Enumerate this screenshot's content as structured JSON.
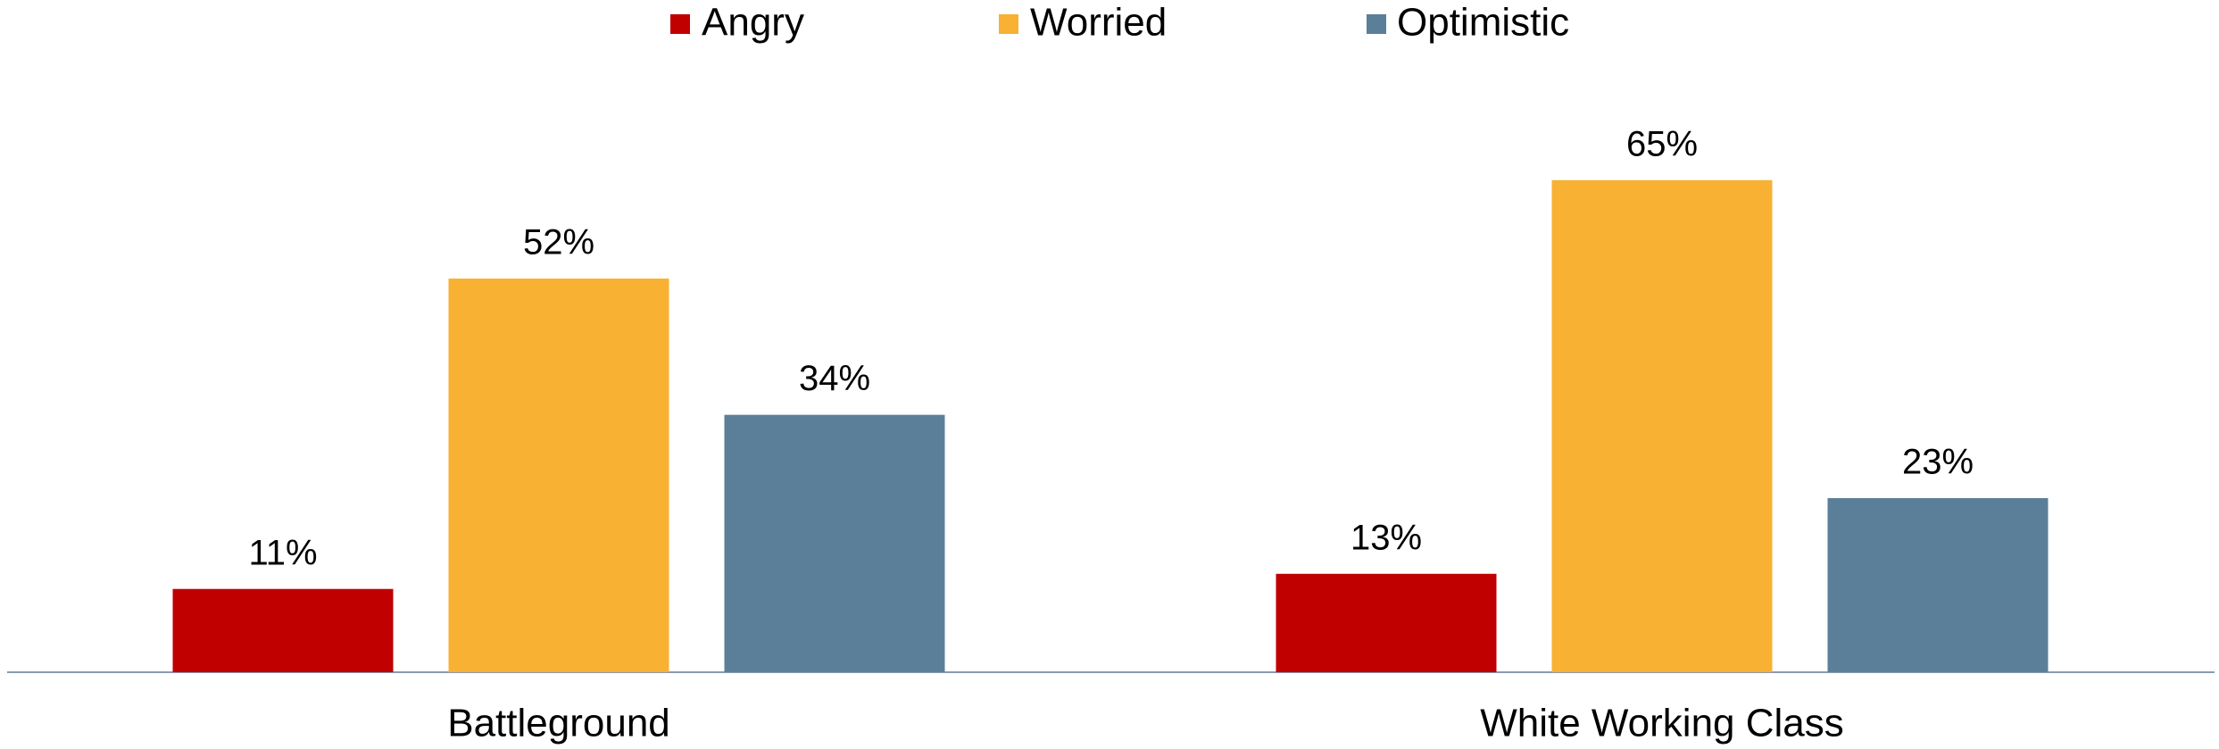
{
  "chart_data": {
    "type": "bar",
    "categories": [
      "Battleground",
      "White Working Class"
    ],
    "series": [
      {
        "name": "Angry",
        "color": "#c00000",
        "values": [
          11,
          13
        ],
        "value_labels": [
          "11%",
          "13%"
        ]
      },
      {
        "name": "Worried",
        "color": "#f8b133",
        "values": [
          52,
          65
        ],
        "value_labels": [
          "52%",
          "65%"
        ]
      },
      {
        "name": "Optimistic",
        "color": "#5b7f99",
        "values": [
          34,
          23
        ],
        "value_labels": [
          "34%",
          "23%"
        ]
      }
    ],
    "legend": "top"
  }
}
